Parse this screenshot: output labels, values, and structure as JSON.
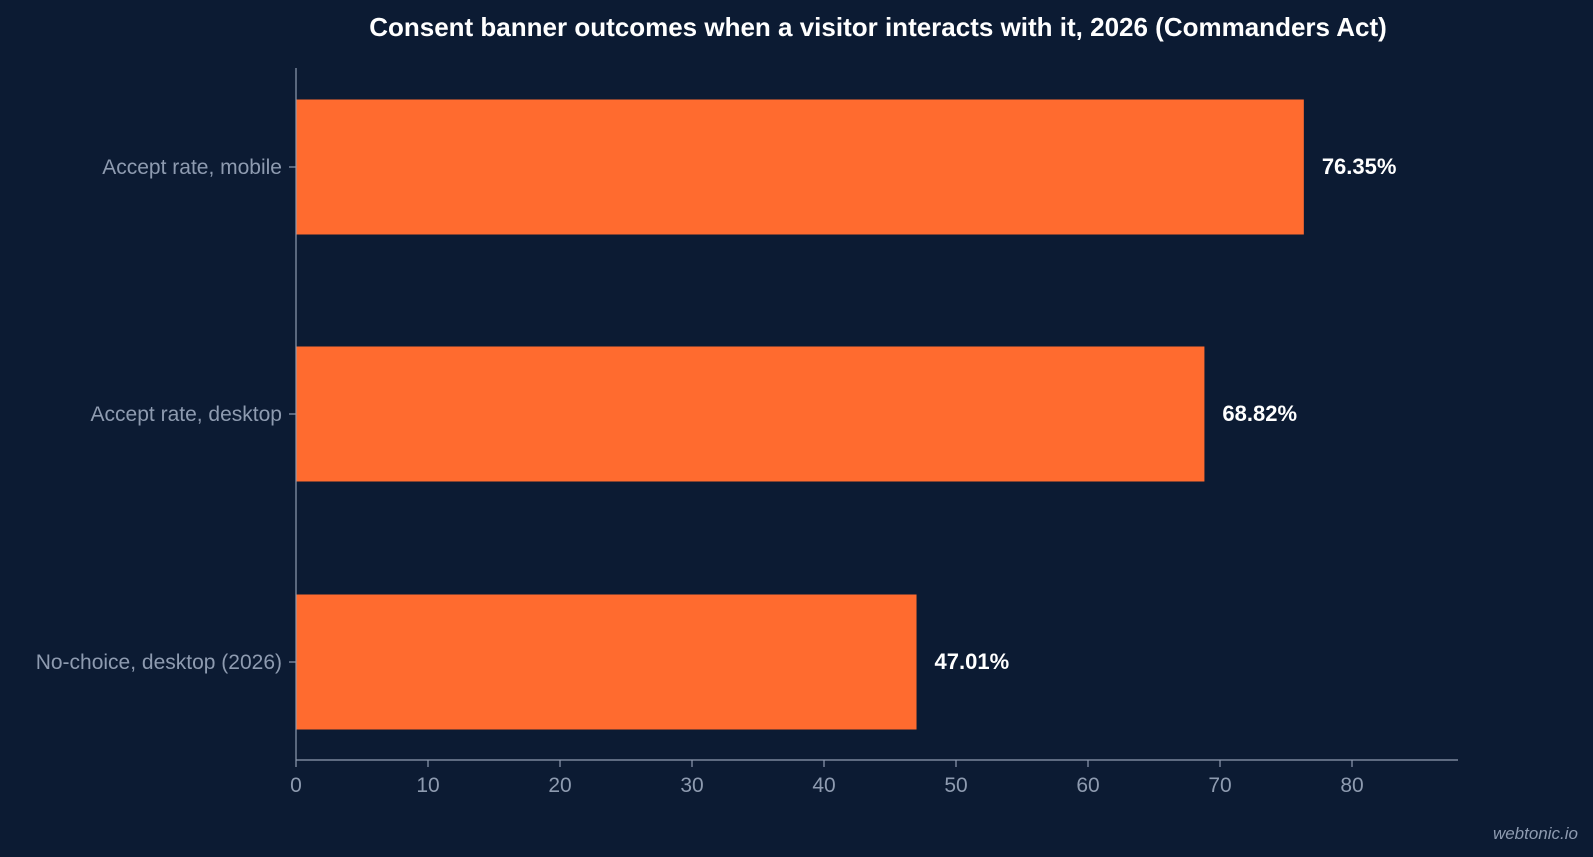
{
  "chart_data": {
    "type": "bar",
    "orientation": "horizontal",
    "title": "Consent banner outcomes when a visitor interacts with it, 2026 (Commanders Act)",
    "categories": [
      "Accept rate, mobile",
      "Accept rate, desktop",
      "No-choice, desktop (2026)"
    ],
    "values": [
      76.35,
      68.82,
      47.01
    ],
    "value_labels": [
      "76.35%",
      "68.82%",
      "47.01%"
    ],
    "xlabel": "",
    "ylabel": "",
    "xlim": [
      0,
      88
    ],
    "xticks": [
      0,
      10,
      20,
      30,
      40,
      50,
      60,
      70,
      80
    ],
    "xtick_labels": [
      "0",
      "10",
      "20",
      "30",
      "40",
      "50",
      "60",
      "70",
      "80"
    ],
    "grid": false,
    "colors": {
      "background": "#0c1b33",
      "bar": "#ff6b2f",
      "axis": "#8e9bb0",
      "title": "#ffffff",
      "value_label": "#ffffff"
    }
  },
  "watermark": "webtonic.io"
}
